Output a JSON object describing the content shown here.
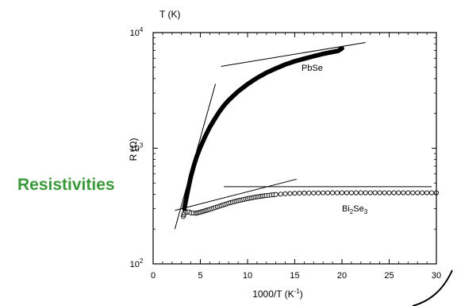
{
  "side_label": "Resistivities",
  "chart_data": {
    "type": "scatter",
    "x_axis": {
      "label": "1000/T (K",
      "label_sup": "-1",
      "label_close": ")",
      "lim": [
        0,
        30
      ],
      "ticks": [
        0,
        5,
        10,
        15,
        20,
        25,
        30
      ],
      "tick_labels": [
        "0",
        "5",
        "10",
        "15",
        "20",
        "25",
        "30"
      ]
    },
    "top_axis": {
      "label": "T (K)"
    },
    "y_axis": {
      "label": "R (Ω)",
      "scale": "log",
      "lim": [
        100,
        10000
      ],
      "ticks": [
        100,
        1000,
        10000
      ],
      "tick_labels": [
        {
          "base": "10",
          "exp": "2"
        },
        {
          "base": "10",
          "exp": "3"
        },
        {
          "base": "10",
          "exp": "4"
        }
      ]
    },
    "series": [
      {
        "name": "PbSe",
        "marker": "filled-circle",
        "x": [
          3.3,
          3.4,
          3.6,
          3.8,
          4.0,
          4.3,
          4.6,
          5.0,
          5.5,
          6.0,
          6.5,
          7.0,
          7.5,
          8.0,
          9.0,
          10.0,
          11.0,
          12.0,
          13.0,
          14.0,
          15.0,
          16.0,
          17.0,
          18.0,
          19.0,
          19.6,
          20.0
        ],
        "y": [
          300,
          330,
          400,
          480,
          570,
          700,
          840,
          1020,
          1260,
          1520,
          1780,
          2060,
          2340,
          2600,
          3100,
          3580,
          4050,
          4500,
          4900,
          5300,
          5650,
          5950,
          6250,
          6550,
          6800,
          6950,
          7300
        ]
      },
      {
        "name": "Bi₂Se₃",
        "marker": "open-circle",
        "x": [
          3.2,
          3.3,
          3.45,
          3.6,
          3.8,
          4.0,
          4.5,
          5.0,
          5.5,
          6.0,
          7.0,
          8.0,
          9.0,
          10.0,
          11.0,
          12.0,
          13.0,
          14.0,
          15.0,
          16.0,
          18.0,
          20.0,
          22.0,
          24.0,
          26.0,
          28.0,
          30.0
        ],
        "y": [
          257,
          275,
          283,
          280,
          282,
          276,
          274,
          280,
          288,
          296,
          315,
          335,
          352,
          367,
          380,
          390,
          398,
          404,
          408,
          410,
          411,
          412,
          412,
          412,
          412,
          412,
          412
        ]
      }
    ],
    "annotations": [
      "PbSe",
      "Bi",
      "2",
      "Se",
      "3"
    ],
    "fit_lines": [
      {
        "x": [
          2.3,
          6.6
        ],
        "y": [
          200,
          3600
        ]
      },
      {
        "x": [
          7.2,
          22.5
        ],
        "y": [
          5100,
          8200
        ]
      },
      {
        "x": [
          2.3,
          15.2
        ],
        "y": [
          290,
          540
        ]
      },
      {
        "x": [
          7.5,
          29.5
        ],
        "y": [
          465,
          465
        ]
      }
    ],
    "grid": false
  }
}
